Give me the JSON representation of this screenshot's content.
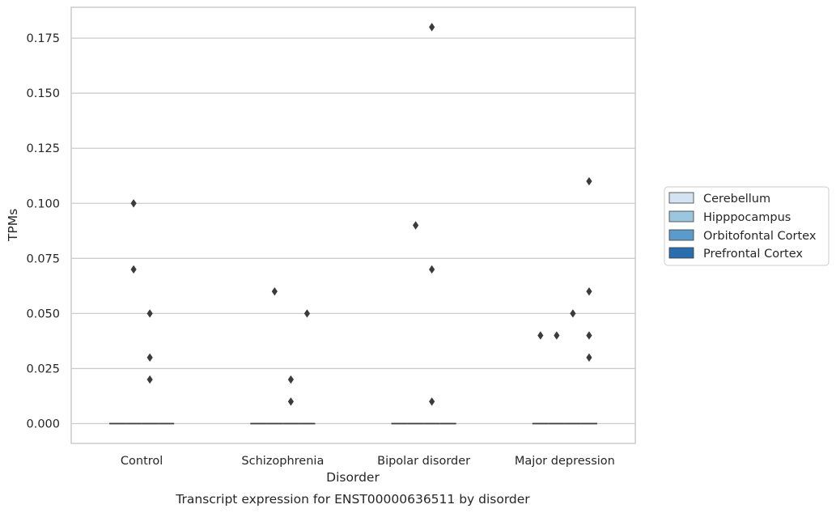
{
  "caption": "Transcript expression for ENST00000636511 by disorder",
  "colors": {
    "grid": "#cccccc",
    "frame": "#cccccc",
    "marker": "#3b3b3b",
    "median": "#3b3b3b",
    "text": "#262626"
  },
  "chart_data": {
    "type": "box",
    "title": "",
    "xlabel": "Disorder",
    "ylabel": "TPMs",
    "categories": [
      "Control",
      "Schizophrenia",
      "Bipolar disorder",
      "Major depression"
    ],
    "ylim": [
      -0.009,
      0.189
    ],
    "yticks": [
      0.0,
      0.025,
      0.05,
      0.075,
      0.1,
      0.125,
      0.15,
      0.175
    ],
    "ytick_labels": [
      "0.000",
      "0.025",
      "0.050",
      "0.075",
      "0.100",
      "0.125",
      "0.150",
      "0.175"
    ],
    "grid": "horizontal",
    "legend_position": "right",
    "series": [
      {
        "name": "Cerebellum",
        "color": "#d4e3f1",
        "median": [
          0,
          0,
          0,
          0
        ],
        "outliers": [
          [],
          [],
          [],
          []
        ]
      },
      {
        "name": "Hipppocampus",
        "color": "#9ac6df",
        "median": [
          0,
          0,
          0,
          0
        ],
        "outliers": [
          [
            0.1,
            0.07
          ],
          [
            0.06
          ],
          [
            0.09
          ],
          [
            0.04
          ]
        ]
      },
      {
        "name": "Orbitofontal Cortex",
        "color": "#5a9bcb",
        "median": [
          0,
          0,
          0,
          0
        ],
        "outliers": [
          [
            0.05,
            0.03,
            0.02
          ],
          [
            0.02,
            0.01
          ],
          [
            0.18,
            0.07,
            0.01
          ],
          [
            0.05
          ]
        ]
      },
      {
        "name": "Prefrontal Cortex",
        "color": "#2b6eaf",
        "median": [
          0,
          0,
          0,
          0
        ],
        "outliers": [
          [],
          [
            0.05
          ],
          [],
          [
            0.04,
            0.03
          ]
        ]
      }
    ],
    "extra_outliers": [
      {
        "category": 3,
        "series": 0,
        "values": [
          0.04
        ]
      },
      {
        "category": 3,
        "series": 3,
        "values": [
          0.11,
          0.06
        ]
      }
    ]
  }
}
